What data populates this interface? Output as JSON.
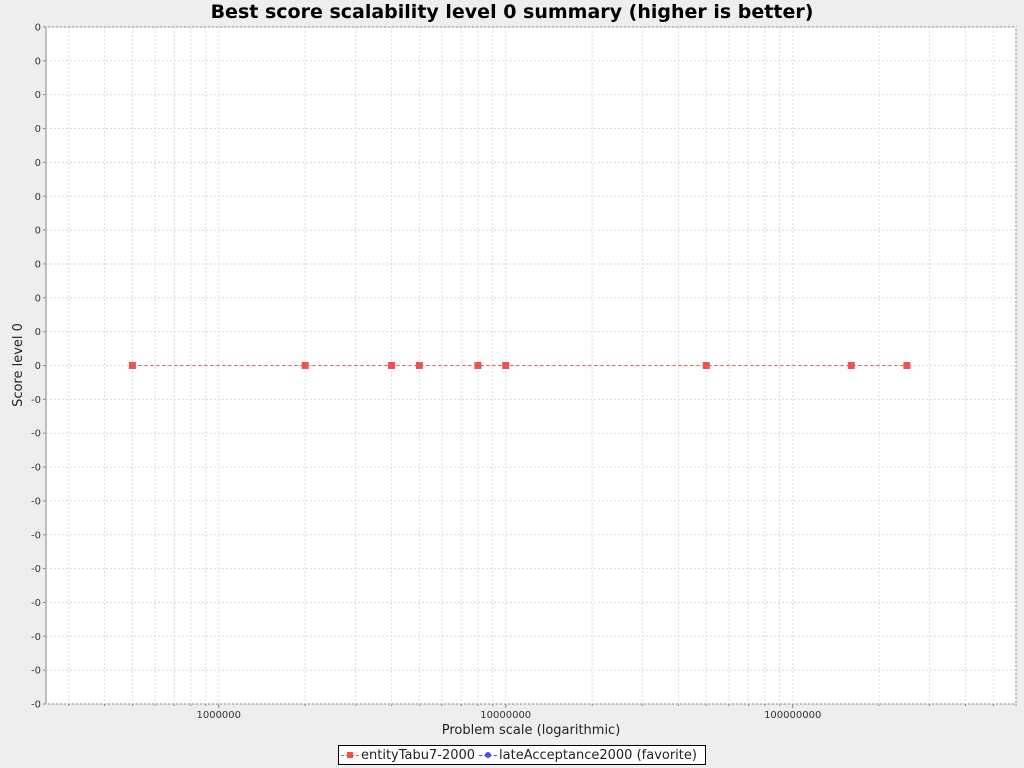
{
  "chart_data": {
    "type": "line",
    "title": "Best score scalability level 0 summary (higher is better)",
    "xlabel": "Problem scale (logarithmic)",
    "ylabel": "Score level 0",
    "x_scale": "log",
    "xlim": [
      250000,
      600000000
    ],
    "x_ticks": [
      "1000000",
      "10000000",
      "100000000"
    ],
    "y_ticks": [
      "0",
      "0",
      "0",
      "0",
      "0",
      "0",
      "0",
      "0",
      "0",
      "0",
      "0",
      "-0",
      "-0",
      "-0",
      "-0",
      "-0",
      "-0",
      "-0",
      "-0",
      "-0",
      "-0"
    ],
    "grid": true,
    "legend_position": "bottom",
    "series": [
      {
        "name": "entityTabu7-2000",
        "color": "#f05050",
        "marker": "square",
        "x": [
          500000,
          2000000,
          4000000,
          5000000,
          8000000,
          10000000,
          50000000,
          160000000,
          250000000
        ],
        "y": [
          0,
          0,
          0,
          0,
          0,
          0,
          0,
          0,
          0
        ]
      },
      {
        "name": "lateAcceptance2000 (favorite)",
        "color": "#4f4ff0",
        "marker": "circle",
        "x": [],
        "y": []
      }
    ]
  }
}
